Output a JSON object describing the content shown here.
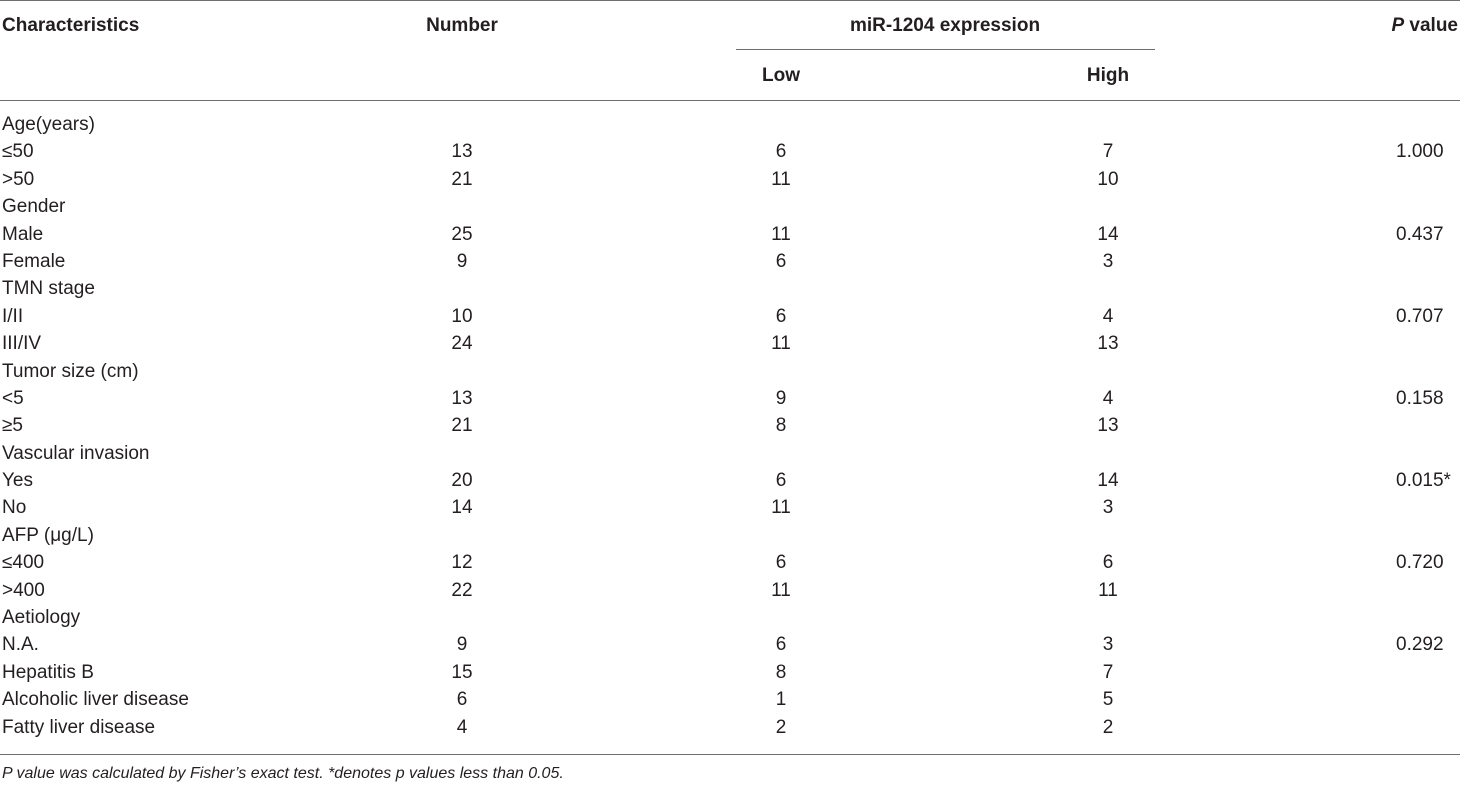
{
  "header": {
    "characteristics": "Characteristics",
    "number": "Number",
    "expression": "miR-1204 expression",
    "low": "Low",
    "high": "High",
    "p_italic": "P",
    "p_rest": " value"
  },
  "rows": [
    {
      "label": "Age(years)",
      "number": "",
      "low": "",
      "high": "",
      "p": ""
    },
    {
      "label": "≤50",
      "number": "13",
      "low": "6",
      "high": "7",
      "p": "1.000"
    },
    {
      "label": ">50",
      "number": "21",
      "low": "11",
      "high": "10",
      "p": ""
    },
    {
      "label": "Gender",
      "number": "",
      "low": "",
      "high": "",
      "p": ""
    },
    {
      "label": "Male",
      "number": "25",
      "low": "11",
      "high": "14",
      "p": "0.437"
    },
    {
      "label": "Female",
      "number": "9",
      "low": "6",
      "high": "3",
      "p": ""
    },
    {
      "label": "TMN stage",
      "number": "",
      "low": "",
      "high": "",
      "p": ""
    },
    {
      "label": "I/II",
      "number": "10",
      "low": "6",
      "high": "4",
      "p": "0.707"
    },
    {
      "label": "III/IV",
      "number": "24",
      "low": "11",
      "high": "13",
      "p": ""
    },
    {
      "label": "Tumor size (cm)",
      "number": "",
      "low": "",
      "high": "",
      "p": ""
    },
    {
      "label": "<5",
      "number": "13",
      "low": "9",
      "high": "4",
      "p": "0.158"
    },
    {
      "label": "≥5",
      "number": "21",
      "low": "8",
      "high": "13",
      "p": ""
    },
    {
      "label": "Vascular invasion",
      "number": "",
      "low": "",
      "high": "",
      "p": ""
    },
    {
      "label": "Yes",
      "number": "20",
      "low": "6",
      "high": "14",
      "p": "0.015*"
    },
    {
      "label": "No",
      "number": "14",
      "low": "11",
      "high": "3",
      "p": ""
    },
    {
      "label": "AFP (μg/L)",
      "number": "",
      "low": "",
      "high": "",
      "p": ""
    },
    {
      "label": "≤400",
      "number": "12",
      "low": "6",
      "high": "6",
      "p": "0.720"
    },
    {
      "label": ">400",
      "number": "22",
      "low": "11",
      "high": "11",
      "p": ""
    },
    {
      "label": "Aetiology",
      "number": "",
      "low": "",
      "high": "",
      "p": ""
    },
    {
      "label": "N.A.",
      "number": "9",
      "low": "6",
      "high": "3",
      "p": "0.292"
    },
    {
      "label": "Hepatitis B",
      "number": "15",
      "low": "8",
      "high": "7",
      "p": ""
    },
    {
      "label": "Alcoholic liver disease",
      "number": "6",
      "low": "1",
      "high": "5",
      "p": ""
    },
    {
      "label": "Fatty liver disease",
      "number": "4",
      "low": "2",
      "high": "2",
      "p": ""
    }
  ],
  "footnote": "P value was calculated by Fisher’s exact test. *denotes p values less than 0.05."
}
